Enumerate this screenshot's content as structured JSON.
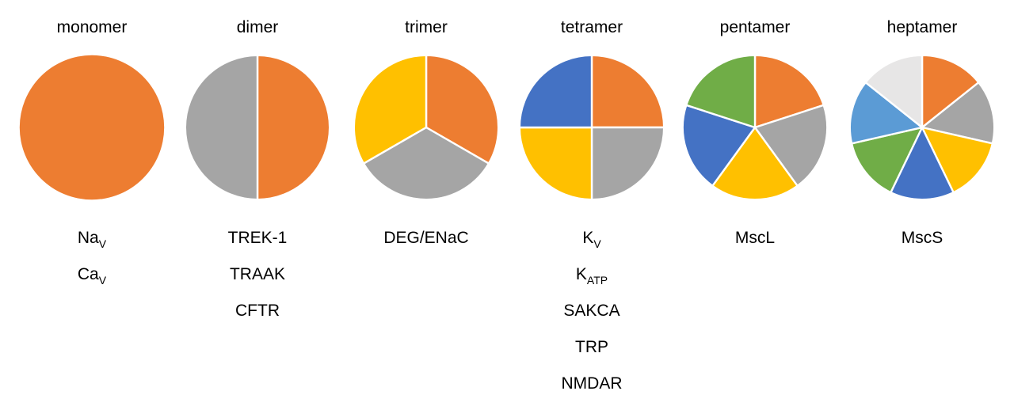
{
  "colors": {
    "orange": "#ED7D31",
    "gray": "#A5A5A5",
    "yellow": "#FFC000",
    "blue": "#4472C4",
    "green": "#70AD47",
    "lightblue": "#5B9BD5",
    "lightgray": "#E7E6E6",
    "stroke": "#ffffff"
  },
  "groups": [
    {
      "title": "monomer",
      "subunits": 1,
      "slice_colors": [
        "orange"
      ],
      "members": [
        {
          "main": "Na",
          "sub": "V"
        },
        {
          "main": "Ca",
          "sub": "V"
        }
      ]
    },
    {
      "title": "dimer",
      "subunits": 2,
      "slice_colors": [
        "orange",
        "gray"
      ],
      "members": [
        {
          "main": "TREK-1",
          "sub": ""
        },
        {
          "main": "TRAAK",
          "sub": ""
        },
        {
          "main": "CFTR",
          "sub": ""
        }
      ]
    },
    {
      "title": "trimer",
      "subunits": 3,
      "slice_colors": [
        "orange",
        "gray",
        "yellow"
      ],
      "members": [
        {
          "main": "DEG/ENaC",
          "sub": ""
        }
      ]
    },
    {
      "title": "tetramer",
      "subunits": 4,
      "slice_colors": [
        "orange",
        "gray",
        "yellow",
        "blue"
      ],
      "members": [
        {
          "main": "K",
          "sub": "V"
        },
        {
          "main": "K",
          "sub": "ATP"
        },
        {
          "main": "SAKCA",
          "sub": ""
        },
        {
          "main": "TRP",
          "sub": ""
        },
        {
          "main": "NMDAR",
          "sub": ""
        }
      ]
    },
    {
      "title": "pentamer",
      "subunits": 5,
      "slice_colors": [
        "orange",
        "gray",
        "yellow",
        "blue",
        "green"
      ],
      "members": [
        {
          "main": "MscL",
          "sub": ""
        }
      ]
    },
    {
      "title": "heptamer",
      "subunits": 7,
      "slice_colors": [
        "orange",
        "gray",
        "yellow",
        "blue",
        "green",
        "lightblue",
        "lightgray"
      ],
      "members": [
        {
          "main": "MscS",
          "sub": ""
        }
      ]
    }
  ]
}
